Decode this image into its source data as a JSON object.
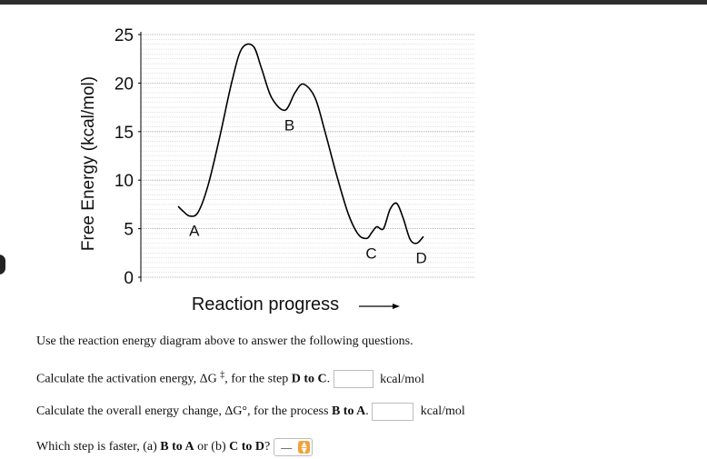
{
  "window": {
    "top_bar_color": "#2e2e2e"
  },
  "diagram": {
    "ylabel": "Free Energy (kcal/mol)",
    "xlabel": "Reaction progress",
    "arrow_icon": "right-arrow-icon",
    "y_ticks": [
      "25",
      "20",
      "15",
      "10",
      "5",
      "0"
    ],
    "point_labels": [
      "A",
      "B",
      "C",
      "D"
    ]
  },
  "chart_data": {
    "type": "line",
    "title": "",
    "xlabel": "Reaction progress",
    "ylabel": "Free Energy (kcal/mol)",
    "ylim": [
      0,
      25
    ],
    "grid": true,
    "series": [
      {
        "x": [
          0.0,
          0.3,
          0.7,
          1.2,
          1.8,
          2.5,
          3.2,
          3.8,
          4.5,
          5.0,
          5.6,
          6.4,
          7.0,
          7.5,
          8.2,
          8.8,
          9.5,
          10.2,
          10.8,
          11.3,
          11.6,
          11.9,
          12.3,
          12.7,
          13.1,
          13.5,
          13.9,
          14.3,
          14.7
        ],
        "y": [
          7.3,
          6.8,
          6.3,
          6.7,
          9.5,
          14.5,
          20.0,
          23.5,
          23.8,
          21.5,
          18.5,
          17.2,
          19.0,
          19.9,
          18.5,
          15.0,
          10.5,
          6.5,
          4.4,
          4.0,
          4.6,
          5.2,
          5.0,
          7.0,
          7.6,
          6.0,
          3.9,
          3.5,
          4.2
        ]
      }
    ],
    "points": [
      {
        "label": "A",
        "x": 0.7,
        "y": 6.3
      },
      {
        "label": "B",
        "x": 6.4,
        "y": 17.2
      },
      {
        "label": "C",
        "x": 11.3,
        "y": 4.0
      },
      {
        "label": "D",
        "x": 14.3,
        "y": 3.5
      }
    ]
  },
  "questions": {
    "intro": "Use the reaction energy diagram above to answer the following questions.",
    "q1": {
      "before": "Calculate the activation energy, ΔG",
      "sup": "‡",
      "mid": ", for the step ",
      "bold": "D to C",
      "after": ".",
      "value": "",
      "unit": "kcal/mol"
    },
    "q2": {
      "before": "Calculate the overall energy change, ΔG°, for the process ",
      "bold": "B to A",
      "after": ".",
      "value": "",
      "unit": "kcal/mol"
    },
    "q3": {
      "before": "Which step is faster, (a) ",
      "bold1": "B to A",
      "mid": " or (b) ",
      "bold2": "C to D",
      "after": "?",
      "selected": "—"
    },
    "accent_color": "#f2a23a"
  }
}
